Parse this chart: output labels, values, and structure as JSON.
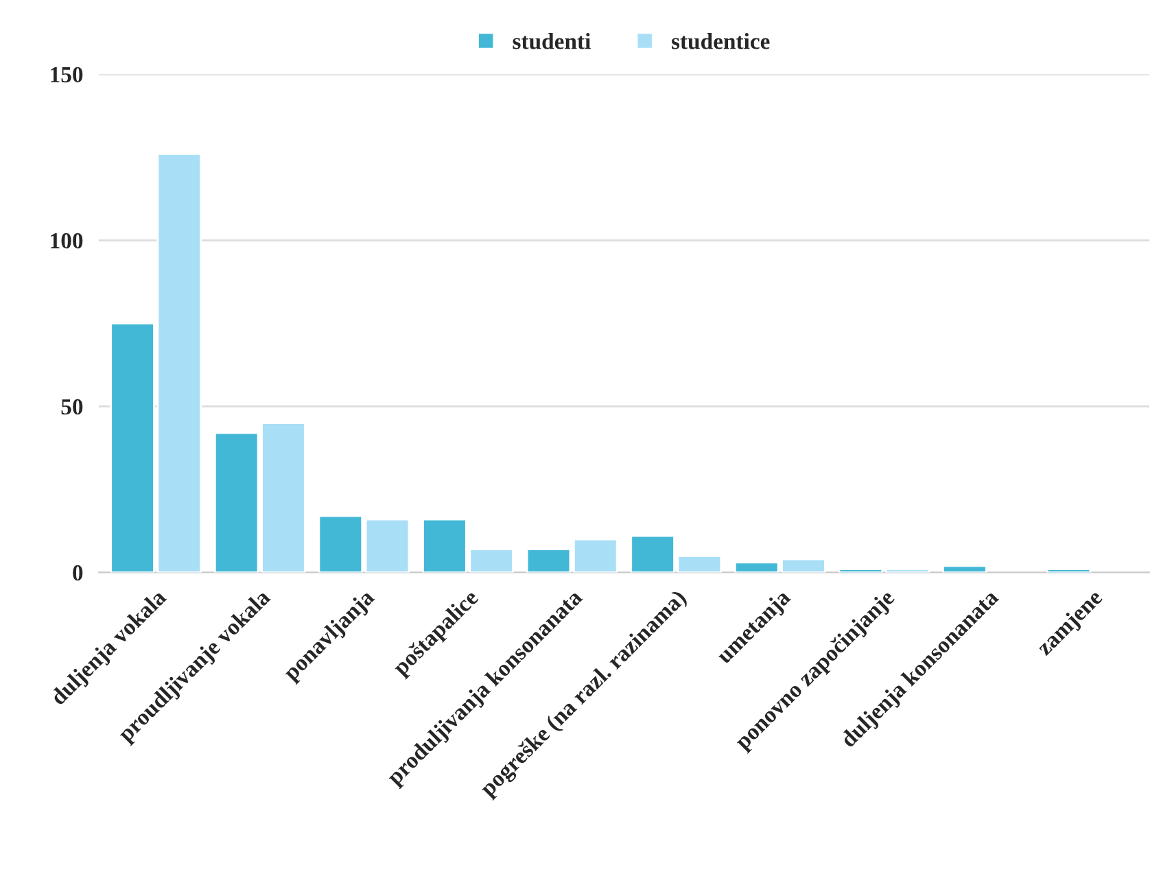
{
  "chart_data": {
    "type": "bar",
    "categories": [
      "duljenja vokala",
      "proudljivanje vokala",
      "ponavljanja",
      "poštapalice",
      "produljivanja konsonanata",
      "pogreške (na razl. razinama)",
      "umetanja",
      "ponovno započinjanje",
      "duljenja konsonanata",
      "zamjene"
    ],
    "series": [
      {
        "name": "studenti",
        "color": "#42b8d6",
        "values": [
          75,
          42,
          17,
          16,
          7,
          11,
          3,
          1,
          2,
          1
        ]
      },
      {
        "name": "studentice",
        "color": "#a8dff7",
        "values": [
          126,
          45,
          16,
          7,
          10,
          5,
          4,
          1,
          null,
          null
        ]
      }
    ],
    "ylim": [
      0,
      150
    ],
    "yticks": [
      0,
      50,
      100,
      150
    ],
    "grid": "y",
    "legend": "top"
  }
}
